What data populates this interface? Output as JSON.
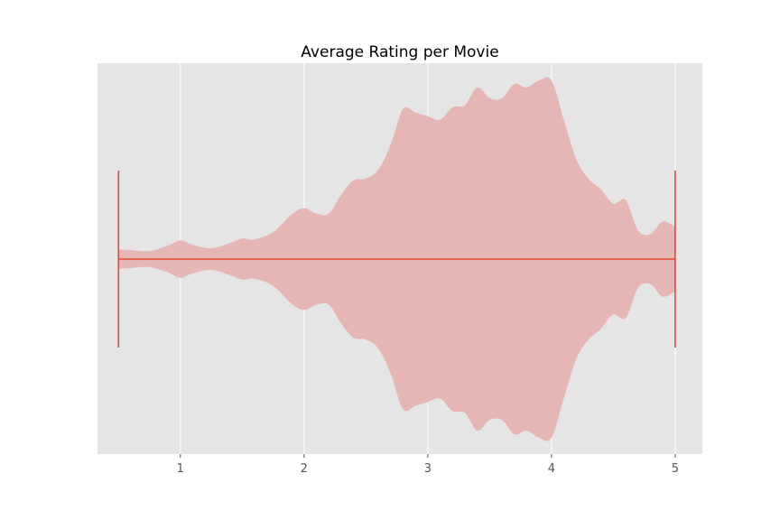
{
  "chart_data": {
    "type": "violin",
    "title": "Average Rating per Movie",
    "xlabel": "",
    "ylabel": "",
    "xlim": [
      0.33,
      5.22
    ],
    "xticks": [
      1,
      2,
      3,
      4,
      5
    ],
    "xtick_labels": [
      "1",
      "2",
      "3",
      "4",
      "5"
    ],
    "orientation": "horizontal",
    "grid": true,
    "extrema_line": {
      "min": 0.5,
      "max": 5.0
    },
    "density": {
      "x": [
        0.5,
        0.6,
        0.75,
        0.9,
        1.0,
        1.1,
        1.25,
        1.4,
        1.5,
        1.6,
        1.75,
        1.9,
        2.0,
        2.1,
        2.2,
        2.3,
        2.4,
        2.5,
        2.6,
        2.7,
        2.8,
        2.9,
        3.0,
        3.1,
        3.2,
        3.3,
        3.4,
        3.5,
        3.6,
        3.7,
        3.8,
        3.9,
        4.0,
        4.1,
        4.2,
        4.3,
        4.4,
        4.5,
        4.6,
        4.7,
        4.8,
        4.9,
        5.0
      ],
      "half_width": [
        0.055,
        0.05,
        0.045,
        0.075,
        0.105,
        0.08,
        0.06,
        0.09,
        0.115,
        0.11,
        0.15,
        0.25,
        0.285,
        0.255,
        0.255,
        0.36,
        0.44,
        0.45,
        0.5,
        0.64,
        0.84,
        0.82,
        0.8,
        0.78,
        0.85,
        0.86,
        0.96,
        0.9,
        0.9,
        0.98,
        0.96,
        1.0,
        1.0,
        0.78,
        0.56,
        0.45,
        0.39,
        0.31,
        0.33,
        0.16,
        0.14,
        0.21,
        0.18
      ]
    },
    "colors": {
      "body_fill": "#e5b6b3",
      "line": "#e24a33",
      "background": "#e5e5e5",
      "grid": "#ffffff"
    }
  }
}
